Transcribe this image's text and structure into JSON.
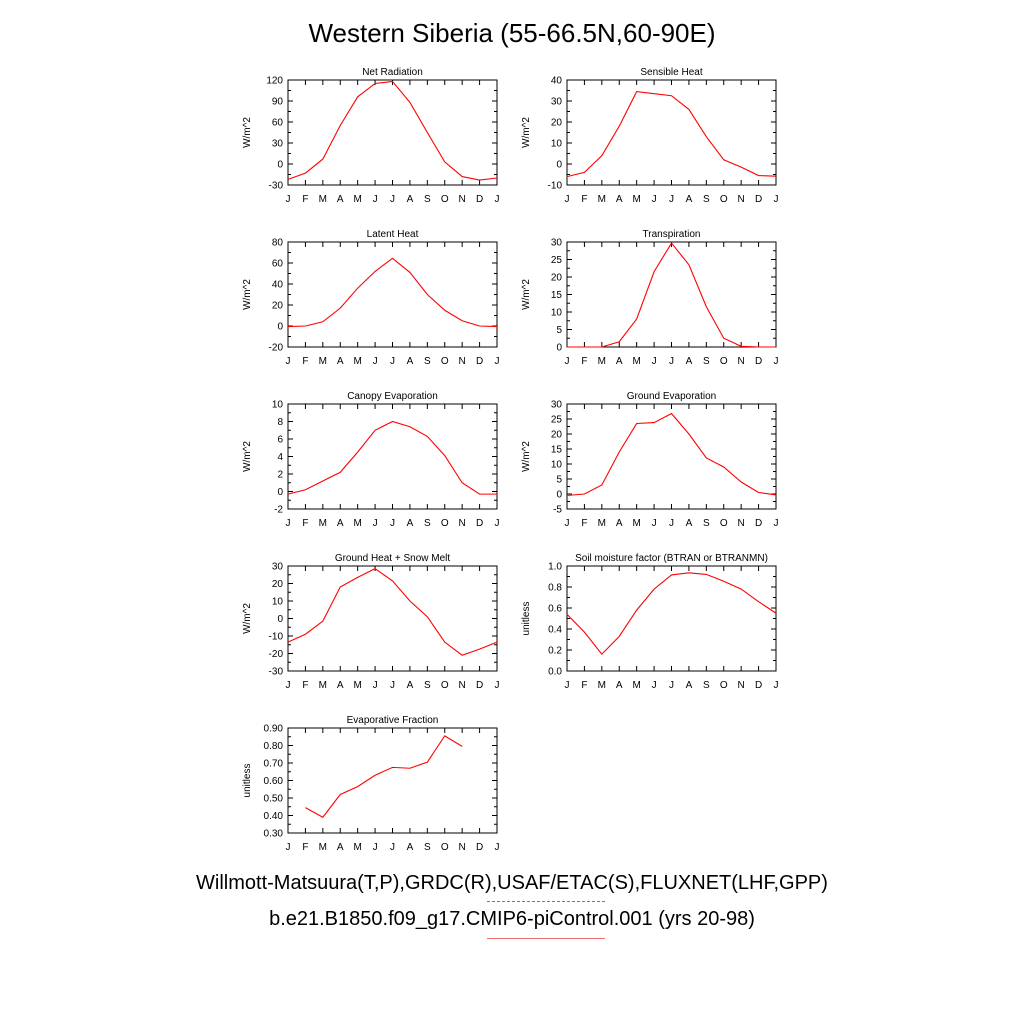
{
  "page": {
    "title": "Western Siberia (55-66.5N,60-90E)",
    "legend": [
      {
        "label": "Willmott-Matsuura(T,P),GRDC(R),USAF/ETAC(S),FLUXNET(LHF,GPP)",
        "color": "#6b6bf0",
        "style": "dashed"
      },
      {
        "label": "b.e21.B1850.f09_g17.CMIP6-piControl.001 (yrs 20-98)",
        "color": "#f07070",
        "style": "solid"
      }
    ],
    "series_color": "#ff0000"
  },
  "chart_data": [
    {
      "type": "line",
      "title": "Net Radiation",
      "ylabel": "W/m^2",
      "ylim": [
        -30,
        120
      ],
      "yticks": [
        -30,
        0,
        30,
        60,
        90,
        120
      ],
      "yticklabels": [
        "-30",
        "0",
        "30",
        "60",
        "90",
        "120"
      ],
      "categories": [
        "J",
        "F",
        "M",
        "A",
        "M",
        "J",
        "J",
        "A",
        "S",
        "O",
        "N",
        "D",
        "J"
      ],
      "series": [
        {
          "values": [
            -22,
            -13,
            7,
            55,
            96,
            115,
            118,
            88,
            45,
            3,
            -18,
            -23,
            -20
          ]
        }
      ]
    },
    {
      "type": "line",
      "title": "Sensible Heat",
      "ylabel": "W/m^2",
      "ylim": [
        -10,
        40
      ],
      "yticks": [
        -10,
        0,
        10,
        20,
        30,
        40
      ],
      "yticklabels": [
        "-10",
        "0",
        "10",
        "20",
        "30",
        "40"
      ],
      "categories": [
        "J",
        "F",
        "M",
        "A",
        "M",
        "J",
        "J",
        "A",
        "S",
        "O",
        "N",
        "D",
        "J"
      ],
      "series": [
        {
          "values": [
            -6,
            -4,
            4,
            18,
            34.5,
            33.5,
            32.5,
            26,
            13,
            2,
            -1.5,
            -5.5,
            -5.8
          ]
        }
      ]
    },
    {
      "type": "line",
      "title": "Latent Heat",
      "ylabel": "W/m^2",
      "ylim": [
        -20,
        80
      ],
      "yticks": [
        -20,
        0,
        20,
        40,
        60,
        80
      ],
      "yticklabels": [
        "-20",
        "0",
        "20",
        "40",
        "60",
        "80"
      ],
      "categories": [
        "J",
        "F",
        "M",
        "A",
        "M",
        "J",
        "J",
        "A",
        "S",
        "O",
        "N",
        "D",
        "J"
      ],
      "series": [
        {
          "values": [
            -0.5,
            0,
            4,
            17,
            36,
            52,
            64.5,
            51,
            30,
            15,
            5,
            0,
            -0.5
          ]
        }
      ]
    },
    {
      "type": "line",
      "title": "Transpiration",
      "ylabel": "W/m^2",
      "ylim": [
        0,
        30
      ],
      "yticks": [
        0,
        5,
        10,
        15,
        20,
        25,
        30
      ],
      "yticklabels": [
        "0",
        "5",
        "10",
        "15",
        "20",
        "25",
        "30"
      ],
      "categories": [
        "J",
        "F",
        "M",
        "A",
        "M",
        "J",
        "J",
        "A",
        "S",
        "O",
        "N",
        "D",
        "J"
      ],
      "series": [
        {
          "values": [
            0,
            0,
            0,
            1.5,
            8,
            21.5,
            29.7,
            23.5,
            11.5,
            2.5,
            0.2,
            0,
            0
          ]
        }
      ]
    },
    {
      "type": "line",
      "title": "Canopy Evaporation",
      "ylabel": "W/m^2",
      "ylim": [
        -2,
        10
      ],
      "yticks": [
        -2,
        0,
        2,
        4,
        6,
        8,
        10
      ],
      "yticklabels": [
        "-2",
        "0",
        "2",
        "4",
        "6",
        "8",
        "10"
      ],
      "categories": [
        "J",
        "F",
        "M",
        "A",
        "M",
        "J",
        "J",
        "A",
        "S",
        "O",
        "N",
        "D",
        "J"
      ],
      "series": [
        {
          "values": [
            -0.3,
            0.2,
            1.2,
            2.2,
            4.5,
            7,
            8,
            7.4,
            6.3,
            4.1,
            1,
            -0.3,
            -0.3
          ]
        }
      ]
    },
    {
      "type": "line",
      "title": "Ground Evaporation",
      "ylabel": "W/m^2",
      "ylim": [
        -5,
        30
      ],
      "yticks": [
        -5,
        0,
        5,
        10,
        15,
        20,
        25,
        30
      ],
      "yticklabels": [
        "-5",
        "0",
        "5",
        "10",
        "15",
        "20",
        "25",
        "30"
      ],
      "categories": [
        "J",
        "F",
        "M",
        "A",
        "M",
        "J",
        "J",
        "A",
        "S",
        "O",
        "N",
        "D",
        "J"
      ],
      "series": [
        {
          "values": [
            -0.5,
            0,
            3,
            14,
            23.5,
            23.8,
            26.8,
            20,
            12,
            9,
            4,
            0.5,
            -0.3
          ]
        }
      ]
    },
    {
      "type": "line",
      "title": "Ground Heat + Snow Melt",
      "ylabel": "W/m^2",
      "ylim": [
        -30,
        30
      ],
      "yticks": [
        -30,
        -20,
        -10,
        0,
        10,
        20,
        30
      ],
      "yticklabels": [
        "-30",
        "-20",
        "-10",
        "0",
        "10",
        "20",
        "30"
      ],
      "categories": [
        "J",
        "F",
        "M",
        "A",
        "M",
        "J",
        "J",
        "A",
        "S",
        "O",
        "N",
        "D",
        "J"
      ],
      "series": [
        {
          "values": [
            -13.5,
            -9,
            -1.5,
            18,
            23.5,
            28.5,
            21.5,
            10,
            1,
            -13.5,
            -21,
            -17.5,
            -13.5
          ]
        }
      ]
    },
    {
      "type": "line",
      "title": "Soil moisture factor (BTRAN or BTRANMN)",
      "ylabel": "unitless",
      "ylim": [
        0,
        1
      ],
      "yticks": [
        0,
        0.2,
        0.4,
        0.6,
        0.8,
        1.0
      ],
      "yticklabels": [
        "0.0",
        "0.2",
        "0.4",
        "0.6",
        "0.8",
        "1.0"
      ],
      "categories": [
        "J",
        "F",
        "M",
        "A",
        "M",
        "J",
        "J",
        "A",
        "S",
        "O",
        "N",
        "D",
        "J"
      ],
      "series": [
        {
          "values": [
            0.54,
            0.37,
            0.16,
            0.33,
            0.58,
            0.78,
            0.915,
            0.935,
            0.92,
            0.855,
            0.78,
            0.66,
            0.55
          ]
        }
      ]
    },
    {
      "type": "line",
      "title": "Evaporative Fraction",
      "ylabel": "unitless",
      "ylim": [
        0.3,
        0.9
      ],
      "yticks": [
        0.3,
        0.4,
        0.5,
        0.6,
        0.7,
        0.8,
        0.9
      ],
      "yticklabels": [
        "0.30",
        "0.40",
        "0.50",
        "0.60",
        "0.70",
        "0.80",
        "0.90"
      ],
      "categories": [
        "J",
        "F",
        "M",
        "A",
        "M",
        "J",
        "J",
        "A",
        "S",
        "O",
        "N",
        "D",
        "J"
      ],
      "series": [
        {
          "values": [
            null,
            0.445,
            0.39,
            0.52,
            0.565,
            0.63,
            0.675,
            0.67,
            0.705,
            0.855,
            0.795,
            null,
            null
          ]
        }
      ]
    }
  ]
}
